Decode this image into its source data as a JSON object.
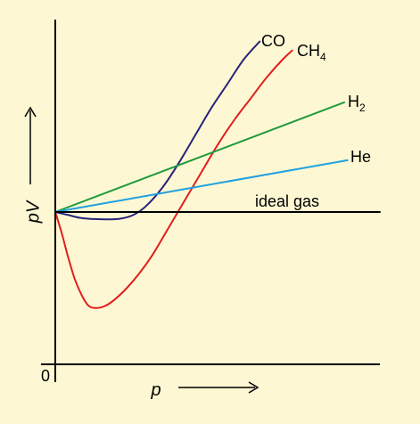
{
  "colors": {
    "background": "#fdf8d3",
    "axis": "#000000"
  },
  "icons": {
    "x_arrow": "right-arrow-icon",
    "y_arrow": "up-arrow-icon"
  },
  "chart_data": {
    "type": "line",
    "xlabel": "p",
    "ylabel": "pV",
    "origin_label": "0",
    "x_ticks": [],
    "y_ticks": [],
    "xlim": [
      0,
      10
    ],
    "ylim": [
      0,
      10
    ],
    "grid": false,
    "legend": "inline labels at curve ends",
    "series": [
      {
        "name": "CO",
        "label_main": "CO",
        "label_sub": "",
        "color": "#28237a",
        "x": [
          0,
          0.4,
          0.8,
          1.2,
          1.6,
          2.0,
          2.4,
          2.8,
          3.3,
          3.8,
          4.3,
          4.8,
          5.3,
          5.8,
          6.3
        ],
        "y": [
          5.0,
          4.9,
          4.8,
          4.77,
          4.76,
          4.78,
          4.9,
          5.2,
          5.8,
          6.6,
          7.5,
          8.4,
          9.2,
          10.0,
          10.6
        ]
      },
      {
        "name": "CH4",
        "label_main": "CH",
        "label_sub": "4",
        "color": "#e01e1e",
        "x": [
          0,
          0.2,
          0.4,
          0.6,
          0.8,
          1.0,
          1.2,
          1.5,
          1.8,
          2.2,
          2.6,
          3.0,
          3.5,
          4.0,
          4.5,
          5.0,
          5.5,
          6.0,
          6.5,
          7.0,
          7.3
        ],
        "y": [
          5.0,
          4.3,
          3.5,
          2.8,
          2.3,
          1.95,
          1.85,
          1.9,
          2.1,
          2.5,
          3.0,
          3.6,
          4.5,
          5.4,
          6.3,
          7.2,
          8.0,
          8.7,
          9.4,
          10.0,
          10.3
        ]
      },
      {
        "name": "H2",
        "label_main": "H",
        "label_sub": "2",
        "color": "#1f9a3c",
        "x": [
          0,
          8.9
        ],
        "y": [
          5.0,
          8.6
        ]
      },
      {
        "name": "He",
        "label_main": "He",
        "label_sub": "",
        "color": "#1ea0e0",
        "x": [
          0,
          9.0
        ],
        "y": [
          5.0,
          6.7
        ]
      },
      {
        "name": "ideal gas",
        "label_main": "ideal gas",
        "label_sub": "",
        "color": "#000000",
        "x": [
          0,
          10
        ],
        "y": [
          5.0,
          5.0
        ]
      }
    ]
  }
}
